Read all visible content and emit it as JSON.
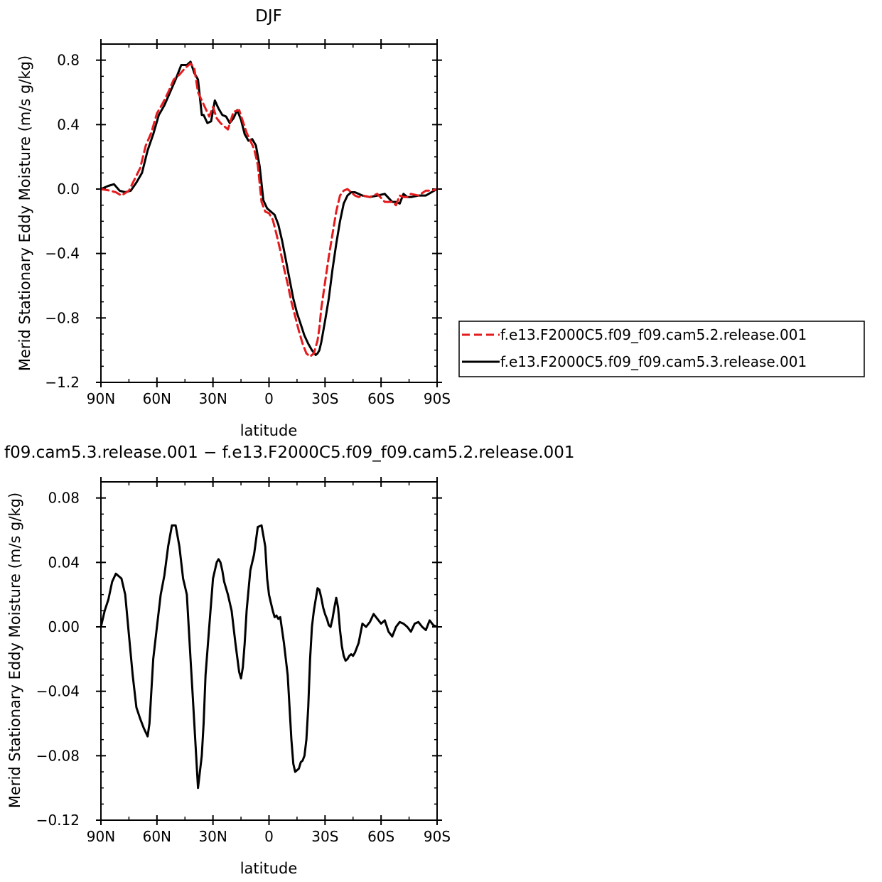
{
  "chart_data": [
    {
      "type": "line",
      "title": "DJF",
      "xlabel": "latitude",
      "ylabel": "Merid Stationary Eddy Moisture (m/s g/kg)",
      "x_ticks": [
        "90N",
        "60N",
        "30N",
        "0",
        "30S",
        "60S",
        "90S"
      ],
      "y_ticks": [
        "0.8",
        "0.4",
        "0.0",
        "−0.4",
        "−0.8",
        "−1.2"
      ],
      "xlim": [
        90,
        -90
      ],
      "ylim": [
        -1.2,
        0.9
      ],
      "x_tick_values": [
        90,
        60,
        30,
        0,
        -30,
        -60,
        -90
      ],
      "y_tick_values": [
        0.8,
        0.4,
        0.0,
        -0.4,
        -0.8,
        -1.2
      ],
      "grid": false,
      "legend_position": "right",
      "series": [
        {
          "name": "f.e13.F2000C5.f09_f09.cam5.2.release.001",
          "color": "#e41a1c",
          "dash": "dashed",
          "x": [
            90,
            85,
            82,
            79,
            75,
            72,
            69,
            66,
            63,
            60,
            57,
            54,
            51,
            48,
            45,
            42,
            40,
            38,
            36,
            34,
            32,
            30,
            28,
            26,
            24,
            22,
            19,
            16,
            14,
            12,
            10,
            8,
            6,
            4,
            2,
            0,
            -2,
            -4,
            -6,
            -8,
            -10,
            -12,
            -14,
            -16,
            -18,
            -20,
            -22,
            -24,
            -26,
            -27,
            -28,
            -30,
            -32,
            -34,
            -36,
            -38,
            -40,
            -42,
            -44,
            -46,
            -48,
            -50,
            -54,
            -58,
            -62,
            -66,
            -68,
            -70,
            -72,
            -74,
            -76,
            -80,
            -84,
            -87,
            -90
          ],
          "y": [
            0.0,
            -0.01,
            -0.02,
            -0.04,
            -0.01,
            0.06,
            0.13,
            0.27,
            0.35,
            0.47,
            0.53,
            0.6,
            0.68,
            0.71,
            0.75,
            0.78,
            0.75,
            0.6,
            0.55,
            0.5,
            0.45,
            0.51,
            0.44,
            0.41,
            0.39,
            0.37,
            0.48,
            0.49,
            0.42,
            0.35,
            0.3,
            0.25,
            0.15,
            -0.08,
            -0.14,
            -0.15,
            -0.19,
            -0.28,
            -0.38,
            -0.49,
            -0.59,
            -0.7,
            -0.79,
            -0.88,
            -0.96,
            -1.02,
            -1.04,
            -1.02,
            -0.94,
            -0.86,
            -0.74,
            -0.58,
            -0.42,
            -0.28,
            -0.14,
            -0.04,
            -0.01,
            0.0,
            -0.02,
            -0.04,
            -0.05,
            -0.04,
            -0.05,
            -0.03,
            -0.08,
            -0.08,
            -0.1,
            -0.04,
            -0.05,
            -0.05,
            -0.03,
            -0.04,
            -0.01,
            -0.01,
            0.0
          ]
        },
        {
          "name": "f.e13.F2000C5.f09_f09.cam5.3.release.001",
          "color": "#000000",
          "dash": "solid",
          "x": [
            90,
            86,
            83,
            80,
            77,
            74,
            71,
            68,
            65,
            62,
            59,
            56,
            53,
            50,
            47,
            44,
            42,
            40,
            38,
            36,
            35,
            33,
            31,
            29,
            27,
            25,
            23,
            21,
            19,
            17,
            15,
            13,
            11,
            9,
            7,
            5,
            3,
            1,
            -1,
            -3,
            -5,
            -7,
            -9,
            -11,
            -13,
            -15,
            -17,
            -19,
            -21,
            -23,
            -25,
            -26,
            -27,
            -28,
            -30,
            -32,
            -34,
            -36,
            -38,
            -40,
            -42,
            -44,
            -46,
            -48,
            -50,
            -54,
            -58,
            -62,
            -66,
            -68,
            -70,
            -72,
            -74,
            -76,
            -80,
            -84,
            -87,
            -90
          ],
          "y": [
            0.0,
            0.02,
            0.03,
            -0.01,
            -0.02,
            -0.01,
            0.04,
            0.1,
            0.24,
            0.34,
            0.46,
            0.52,
            0.6,
            0.68,
            0.77,
            0.77,
            0.79,
            0.72,
            0.68,
            0.46,
            0.46,
            0.41,
            0.42,
            0.55,
            0.5,
            0.46,
            0.45,
            0.41,
            0.44,
            0.49,
            0.43,
            0.34,
            0.3,
            0.31,
            0.27,
            0.14,
            -0.07,
            -0.12,
            -0.14,
            -0.16,
            -0.22,
            -0.32,
            -0.44,
            -0.56,
            -0.68,
            -0.77,
            -0.84,
            -0.91,
            -0.96,
            -1.0,
            -1.03,
            -1.02,
            -1.0,
            -0.95,
            -0.82,
            -0.68,
            -0.5,
            -0.34,
            -0.2,
            -0.09,
            -0.04,
            -0.02,
            -0.02,
            -0.03,
            -0.04,
            -0.05,
            -0.04,
            -0.03,
            -0.08,
            -0.08,
            -0.09,
            -0.03,
            -0.05,
            -0.05,
            -0.04,
            -0.04,
            -0.02,
            0.0
          ]
        }
      ]
    },
    {
      "type": "line",
      "title": "f09.cam5.3.release.001 − f.e13.F2000C5.f09_f09.cam5.2.release.001",
      "xlabel": "latitude",
      "ylabel": "Merid Stationary Eddy Moisture (m/s g/kg)",
      "x_ticks": [
        "90N",
        "60N",
        "30N",
        "0",
        "30S",
        "60S",
        "90S"
      ],
      "y_ticks": [
        "0.08",
        "0.04",
        "0.00",
        "−0.04",
        "−0.08",
        "−0.12"
      ],
      "xlim": [
        90,
        -90
      ],
      "ylim": [
        -0.12,
        0.09
      ],
      "x_tick_values": [
        90,
        60,
        30,
        0,
        -30,
        -60,
        -90
      ],
      "y_tick_values": [
        0.08,
        0.04,
        0.0,
        -0.04,
        -0.08,
        -0.12
      ],
      "grid": false,
      "series": [
        {
          "color": "#000000",
          "dash": "solid",
          "x": [
            90,
            88,
            86,
            84,
            82,
            81,
            79,
            77,
            75,
            73,
            71,
            69,
            67,
            65,
            64,
            62,
            60,
            58,
            56,
            54,
            52,
            50,
            48,
            47,
            46,
            45,
            44,
            43,
            42,
            41,
            40,
            38,
            36,
            35,
            34,
            32,
            30,
            28,
            27,
            26,
            25,
            24,
            22,
            20,
            18,
            16,
            15,
            14,
            13,
            12,
            10,
            8,
            6,
            4,
            2,
            1,
            0,
            -1,
            -2,
            -3,
            -4,
            -5,
            -6,
            -8,
            -10,
            -11,
            -12,
            -13,
            -14,
            -16,
            -17,
            -18,
            -19,
            -20,
            -21,
            -22,
            -23,
            -24,
            -26,
            -27,
            -28,
            -29,
            -30,
            -31,
            -32,
            -33,
            -34,
            -35,
            -36,
            -37,
            -38,
            -39,
            -40,
            -41,
            -42,
            -43,
            -44,
            -45,
            -46,
            -47,
            -48,
            -50,
            -52,
            -54,
            -56,
            -58,
            -60,
            -62,
            -64,
            -66,
            -68,
            -70,
            -72,
            -74,
            -76,
            -78,
            -80,
            -82,
            -84,
            -86,
            -88,
            -90
          ],
          "y": [
            0.0,
            0.01,
            0.017,
            0.028,
            0.033,
            0.032,
            0.03,
            0.02,
            -0.005,
            -0.03,
            -0.05,
            -0.057,
            -0.063,
            -0.068,
            -0.06,
            -0.02,
            0.0,
            0.02,
            0.032,
            0.05,
            0.063,
            0.063,
            0.05,
            0.04,
            0.03,
            0.025,
            0.02,
            0.0,
            -0.02,
            -0.04,
            -0.06,
            -0.1,
            -0.08,
            -0.06,
            -0.03,
            0.0,
            0.03,
            0.04,
            0.042,
            0.04,
            0.035,
            0.028,
            0.02,
            0.01,
            -0.01,
            -0.028,
            -0.032,
            -0.025,
            -0.01,
            0.01,
            0.035,
            0.045,
            0.062,
            0.063,
            0.05,
            0.03,
            0.02,
            0.015,
            0.01,
            0.006,
            0.007,
            0.005,
            0.006,
            -0.01,
            -0.03,
            -0.05,
            -0.07,
            -0.085,
            -0.09,
            -0.088,
            -0.084,
            -0.083,
            -0.08,
            -0.07,
            -0.05,
            -0.02,
            0.0,
            0.01,
            0.024,
            0.023,
            0.018,
            0.012,
            0.008,
            0.005,
            0.001,
            0.0,
            0.005,
            0.012,
            0.018,
            0.012,
            -0.002,
            -0.012,
            -0.018,
            -0.021,
            -0.02,
            -0.018,
            -0.017,
            -0.018,
            -0.016,
            -0.013,
            -0.01,
            0.002,
            0.0,
            0.003,
            0.008,
            0.005,
            0.002,
            0.004,
            -0.003,
            -0.006,
            0.0,
            0.003,
            0.002,
            0.0,
            -0.003,
            0.002,
            0.003,
            0.0,
            -0.002,
            0.004,
            0.001,
            0.0
          ]
        }
      ]
    }
  ]
}
